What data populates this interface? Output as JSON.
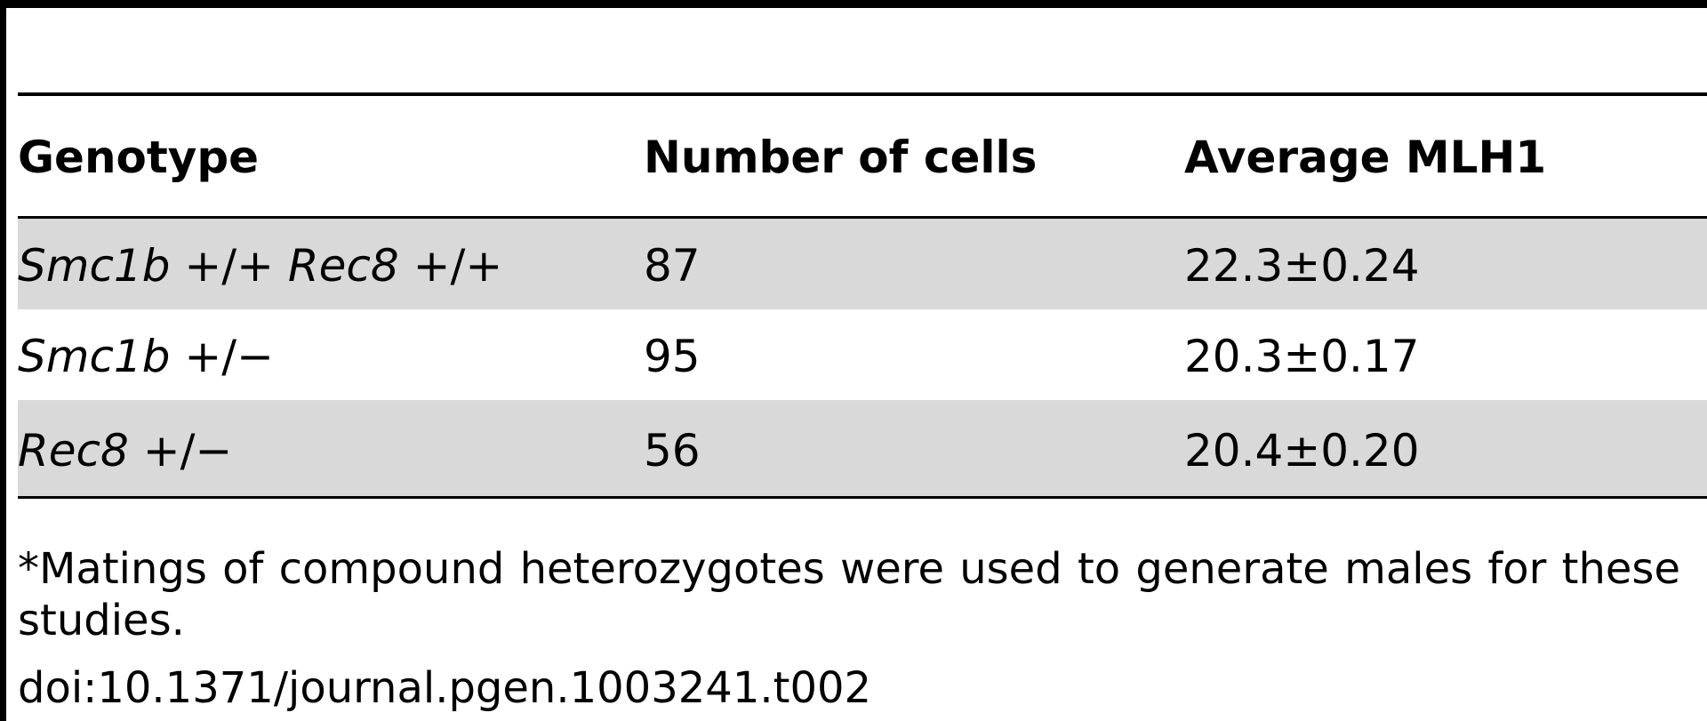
{
  "table": {
    "headers": [
      "Genotype",
      "Number of cells",
      "Average MLH1"
    ],
    "rows": [
      {
        "genotype_parts": [
          {
            "text": "Smc1b",
            "italic": true
          },
          {
            "text": " +/+ ",
            "italic": false
          },
          {
            "text": "Rec8",
            "italic": true
          },
          {
            "text": " +/+",
            "italic": false
          }
        ],
        "cells": "87",
        "average": "22.3±0.24"
      },
      {
        "genotype_parts": [
          {
            "text": "Smc1b",
            "italic": true
          },
          {
            "text": " +/−",
            "italic": false
          }
        ],
        "cells": "95",
        "average": "20.3±0.17"
      },
      {
        "genotype_parts": [
          {
            "text": "Rec8",
            "italic": true
          },
          {
            "text": " +/−",
            "italic": false
          }
        ],
        "cells": "56",
        "average": "20.4±0.20"
      }
    ]
  },
  "footnote": "*Matings of compound heterozygotes were used to generate males for these studies.",
  "doi": "doi:10.1371/journal.pgen.1003241.t002"
}
